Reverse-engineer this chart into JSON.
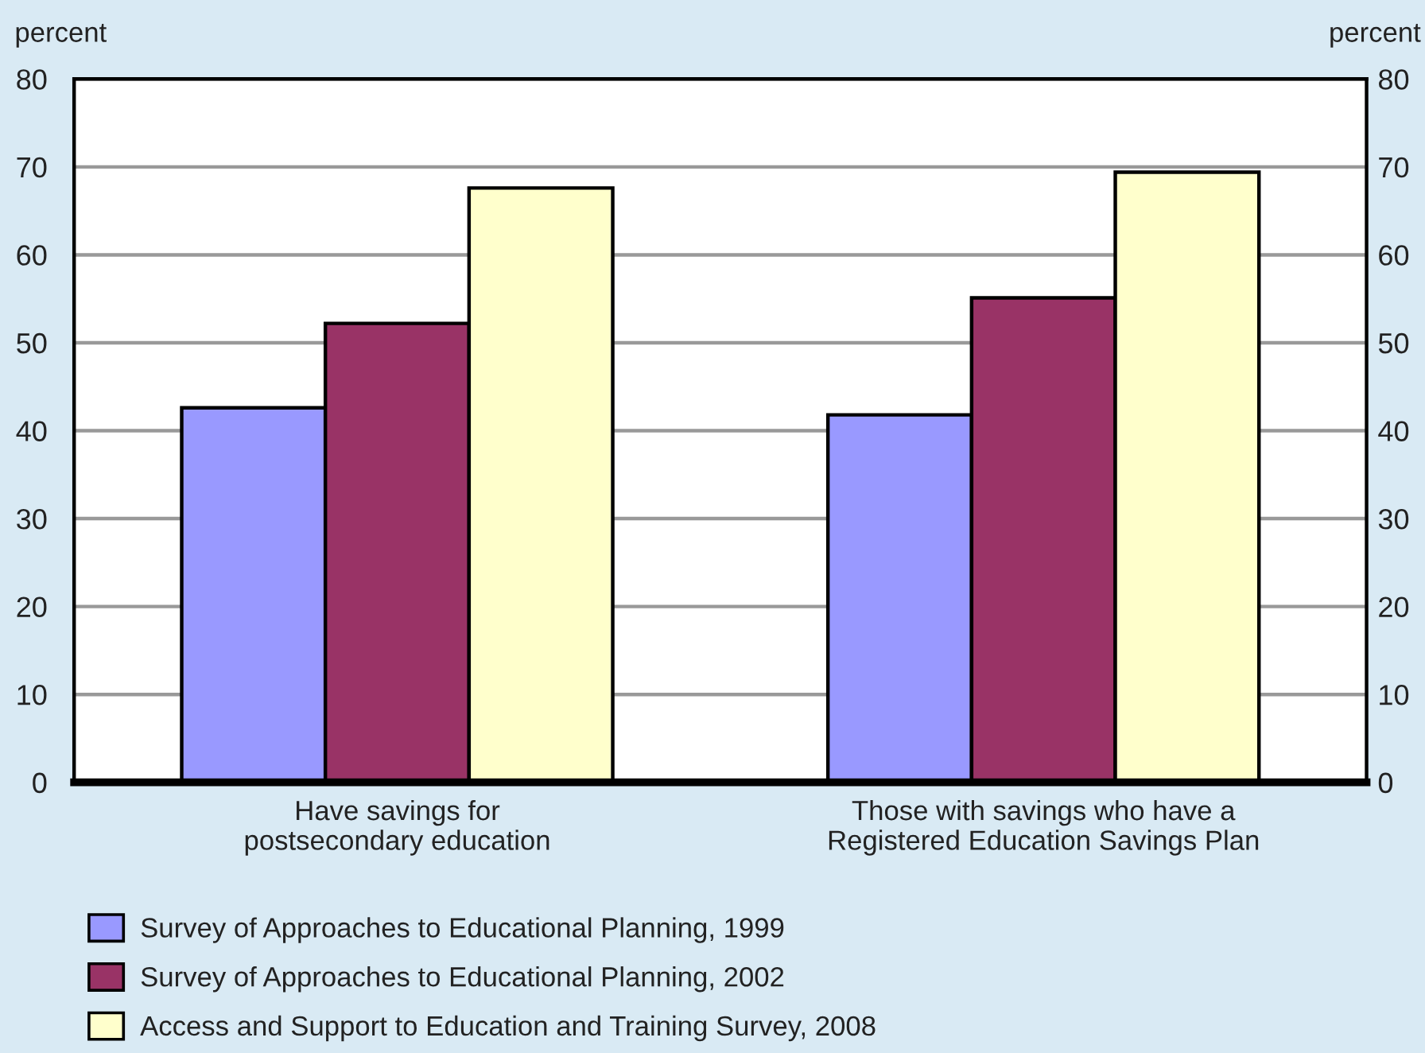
{
  "chart_data": {
    "type": "bar",
    "categories": [
      "Have savings for\npostsecondary education",
      "Those with savings who have a\nRegistered Education Savings Plan"
    ],
    "series": [
      {
        "name": "Survey of Approaches to Educational Planning, 1999",
        "color": "#9999ff",
        "values": [
          42.6,
          41.8
        ]
      },
      {
        "name": "Survey of Approaches to Educational Planning, 2002",
        "color": "#993366",
        "values": [
          52.2,
          55.1
        ]
      },
      {
        "name": "Access and Support to Education and Training Survey, 2008",
        "color": "#ffffcc",
        "values": [
          67.6,
          69.4
        ]
      }
    ],
    "ylabel": "percent",
    "y2label": "percent",
    "ylim": [
      0,
      80
    ],
    "yticks": [
      0,
      10,
      20,
      30,
      40,
      50,
      60,
      70,
      80
    ],
    "y2lim": [
      0,
      80
    ],
    "y2ticks": [
      0,
      10,
      20,
      30,
      40,
      50,
      60,
      70,
      80
    ],
    "grid": "y",
    "legend": "bottom"
  }
}
